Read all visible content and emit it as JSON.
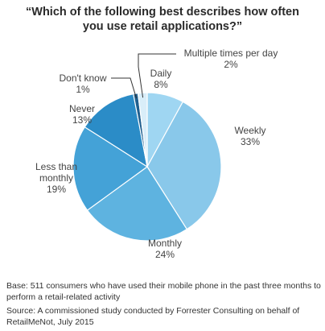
{
  "title_lines": [
    "“Which of the following best describes how often",
    "you use retail applications?”"
  ],
  "chart_data": {
    "type": "pie",
    "title": "“Which of the following best describes how often you use retail applications?”",
    "slices": [
      {
        "label": "Daily",
        "value": 8,
        "value_label": "8%",
        "color": "#9fd6f2"
      },
      {
        "label": "Weekly",
        "value": 33,
        "value_label": "33%",
        "color": "#89c8ea"
      },
      {
        "label": "Monthly",
        "value": 24,
        "value_label": "24%",
        "color": "#5eb3e0"
      },
      {
        "label": "Less than monthly",
        "value": 19,
        "value_label": "19%",
        "color": "#44a2d7"
      },
      {
        "label": "Never",
        "value": 13,
        "value_label": "13%",
        "color": "#2b8cc7"
      },
      {
        "label": "Don't know",
        "value": 1,
        "value_label": "1%",
        "color": "#1f5f8f"
      },
      {
        "label": "Multiple times per day",
        "value": 2,
        "value_label": "2%",
        "color": "#d9eef9"
      }
    ],
    "start_slice": "Daily",
    "direction": "clockwise"
  },
  "footer": {
    "base": "Base: 511 consumers who have used their mobile phone in the past three months to perform a retail-related activity",
    "source": "Source: A commissioned study conducted by Forrester Consulting on behalf of RetailMeNot, July 2015"
  }
}
